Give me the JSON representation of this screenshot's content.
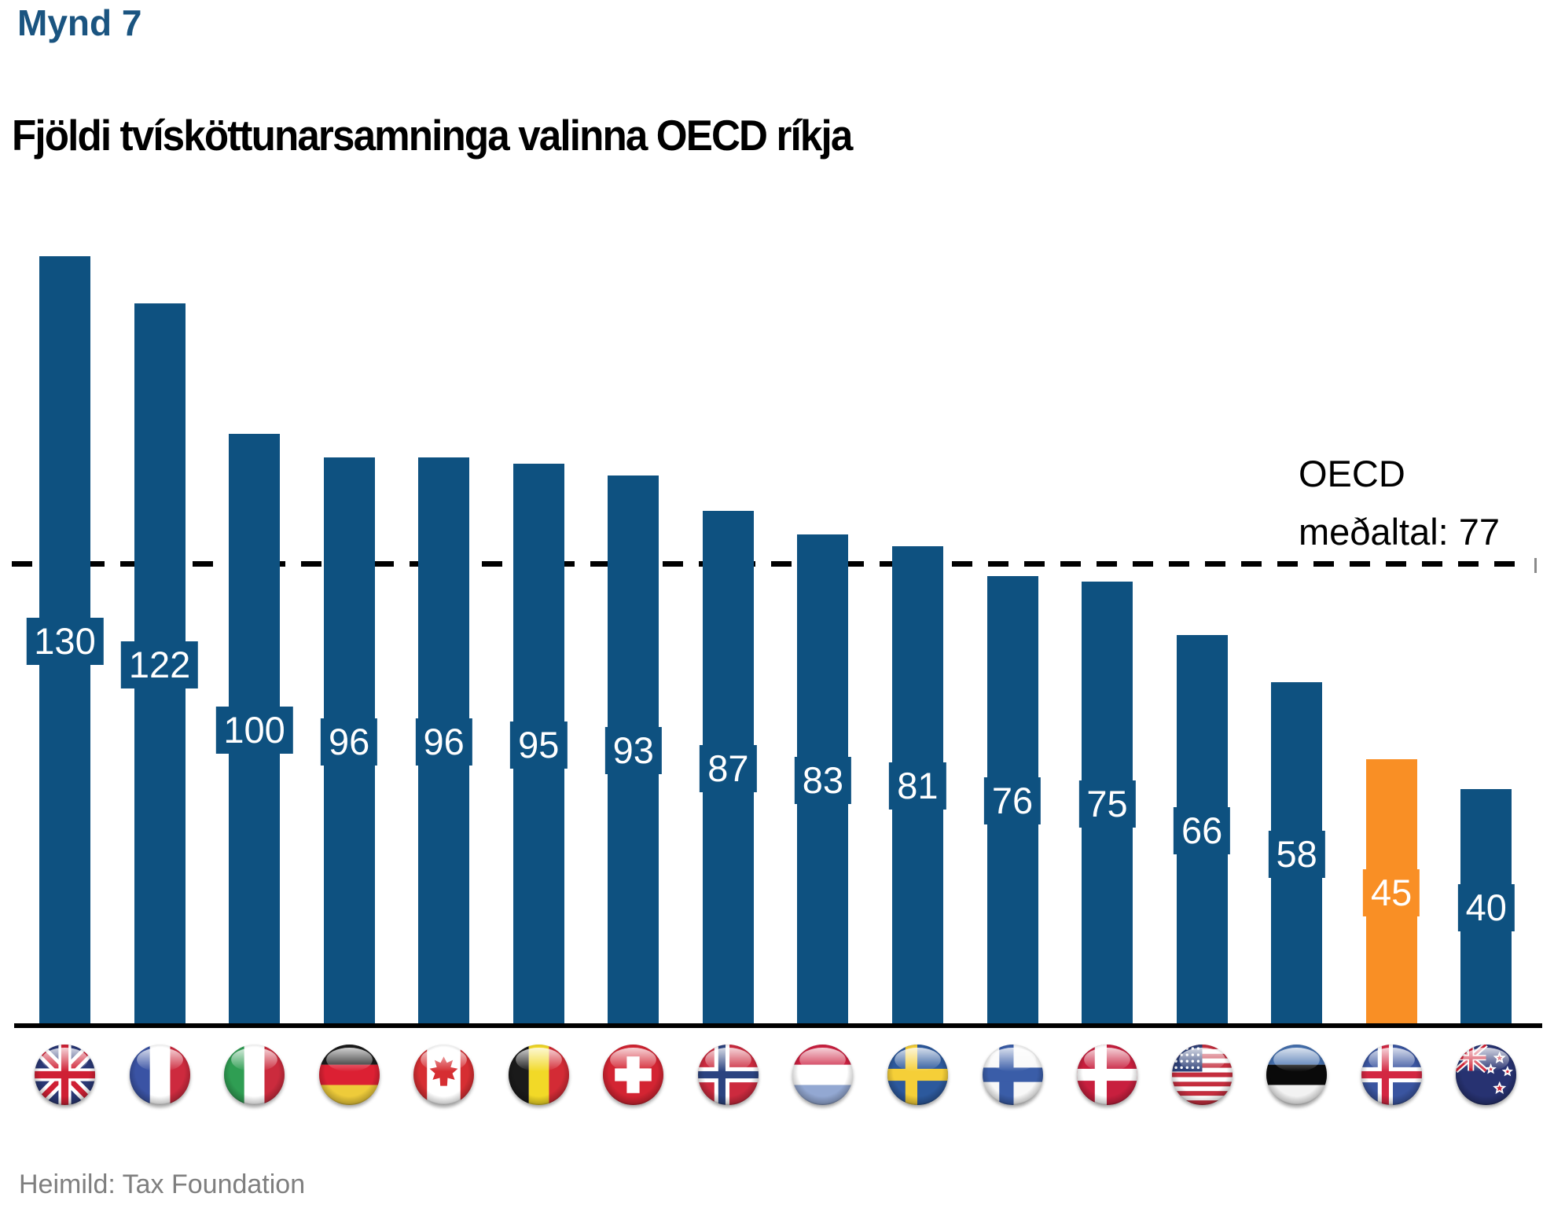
{
  "figure_label": "Mynd 7",
  "title": "Fjöldi tvísköttunarsamninga valinna OECD ríkja",
  "source": "Heimild: Tax Foundation",
  "average_line": {
    "label_line1": "OECD",
    "label_line2": "meðaltal: 77",
    "value": 77
  },
  "colors": {
    "bar": "#0e5180",
    "highlight": "#f98f25",
    "figure_label": "#1a5480",
    "title": "#000000",
    "source_text": "#7f7f7f",
    "axis": "#000000",
    "average_line": "#000000",
    "value_label_text": "#ffffff"
  },
  "chart_data": {
    "type": "bar",
    "title": "Fjöldi tvísköttunarsamninga valinna OECD ríkja",
    "categories": [
      "United Kingdom",
      "France",
      "Italy",
      "Germany",
      "Canada",
      "Belgium",
      "Switzerland",
      "Norway",
      "Luxembourg",
      "Sweden",
      "Finland",
      "Denmark",
      "United States",
      "Estonia",
      "Iceland",
      "New Zealand"
    ],
    "flag_icons": [
      "gb",
      "fr",
      "it",
      "de",
      "ca",
      "be",
      "ch",
      "no",
      "lu",
      "se",
      "fi",
      "dk",
      "us",
      "ee",
      "is",
      "nz"
    ],
    "values": [
      130,
      122,
      100,
      96,
      96,
      95,
      93,
      87,
      83,
      81,
      76,
      75,
      66,
      58,
      45,
      40
    ],
    "highlight_index": 14,
    "average": 77,
    "ylim": [
      0,
      135
    ],
    "grid": false,
    "legend": false,
    "value_labels": "centered-on-bar",
    "xlabel": "",
    "ylabel": ""
  }
}
